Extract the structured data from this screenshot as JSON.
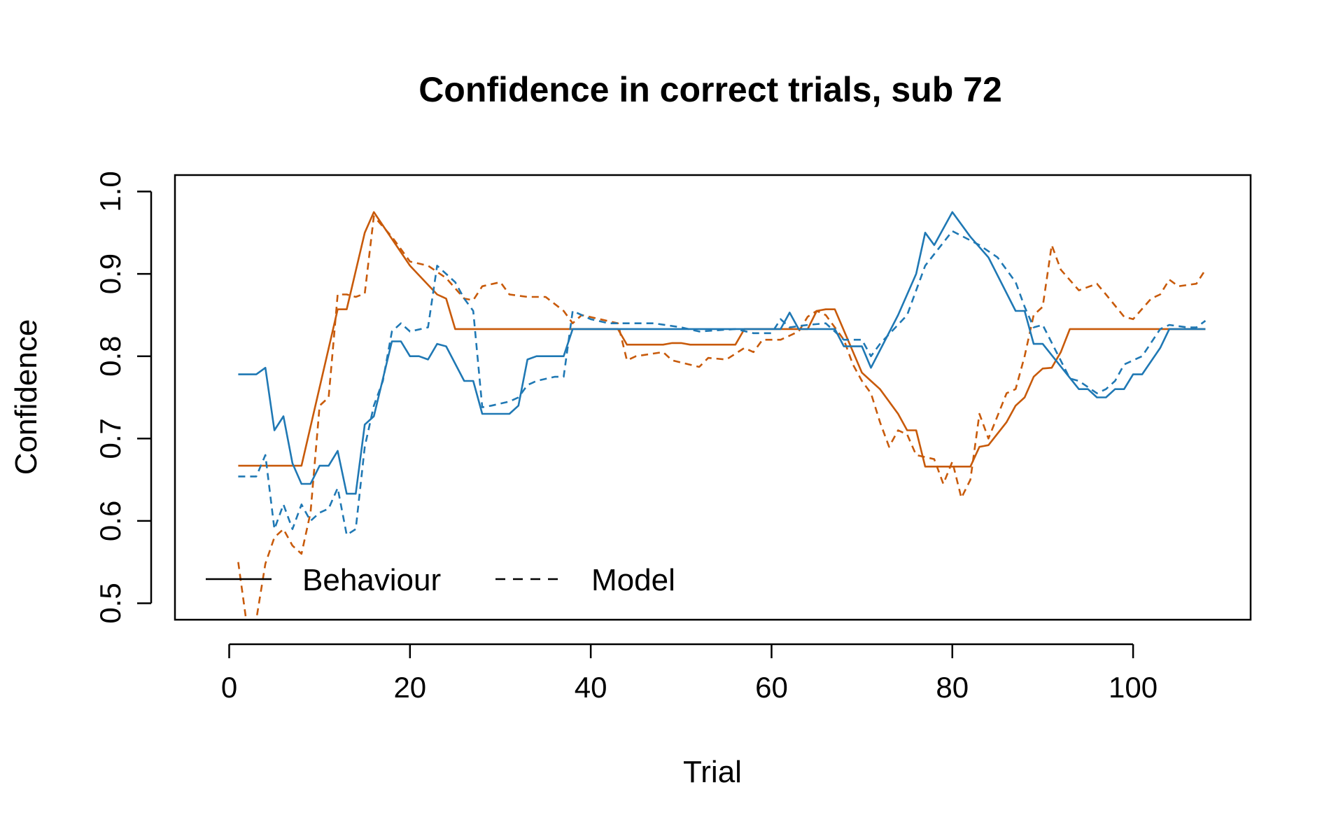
{
  "chart_data": {
    "type": "line",
    "title": "Confidence in correct trials, sub 72",
    "xlabel": "Trial",
    "ylabel": "Confidence",
    "xlim": [
      -6,
      113
    ],
    "ylim": [
      0.48,
      1.02
    ],
    "x_ticks": [
      0,
      20,
      40,
      60,
      80,
      100
    ],
    "y_ticks": [
      0.5,
      0.6,
      0.7,
      0.8,
      0.9,
      1.0
    ],
    "x_tick_labels": [
      "0",
      "20",
      "40",
      "60",
      "80",
      "100"
    ],
    "y_tick_labels": [
      "0.5",
      "0.6",
      "0.7",
      "0.8",
      "0.9",
      "1.0"
    ],
    "colors": {
      "orange": "#c85a0a",
      "blue": "#1f78b4"
    },
    "legend": {
      "position": "bottom-left",
      "entries": [
        {
          "label": "Behaviour",
          "line_style": "solid"
        },
        {
          "label": "Model",
          "line_style": "dashed"
        }
      ]
    },
    "series": [
      {
        "color": "orange",
        "line_style": "solid",
        "points": [
          [
            1,
            0.667
          ],
          [
            8,
            0.667
          ],
          [
            12,
            0.857
          ],
          [
            13,
            0.857
          ],
          [
            15,
            0.95
          ],
          [
            16,
            0.975
          ],
          [
            20,
            0.91
          ],
          [
            23,
            0.875
          ],
          [
            24,
            0.87
          ],
          [
            25,
            0.833
          ],
          [
            43,
            0.833
          ],
          [
            44,
            0.814
          ],
          [
            48,
            0.814
          ],
          [
            49,
            0.816
          ],
          [
            50,
            0.816
          ],
          [
            51,
            0.814
          ],
          [
            56,
            0.814
          ],
          [
            57,
            0.833
          ],
          [
            64,
            0.833
          ],
          [
            65,
            0.855
          ],
          [
            66,
            0.857
          ],
          [
            67,
            0.857
          ],
          [
            70,
            0.78
          ],
          [
            71,
            0.77
          ],
          [
            72,
            0.76
          ],
          [
            74,
            0.73
          ],
          [
            75,
            0.71
          ],
          [
            76,
            0.71
          ],
          [
            77,
            0.666
          ],
          [
            82,
            0.666
          ],
          [
            83,
            0.69
          ],
          [
            84,
            0.692
          ],
          [
            86,
            0.72
          ],
          [
            87,
            0.74
          ],
          [
            88,
            0.75
          ],
          [
            89,
            0.775
          ],
          [
            90,
            0.785
          ],
          [
            91,
            0.786
          ],
          [
            92,
            0.805
          ],
          [
            93,
            0.833
          ],
          [
            108,
            0.833
          ]
        ]
      },
      {
        "color": "orange",
        "line_style": "dashed",
        "points": [
          [
            1,
            0.55
          ],
          [
            2,
            0.47
          ],
          [
            3,
            0.48
          ],
          [
            4,
            0.548
          ],
          [
            5,
            0.58
          ],
          [
            6,
            0.59
          ],
          [
            7,
            0.57
          ],
          [
            8,
            0.56
          ],
          [
            9,
            0.61
          ],
          [
            10,
            0.74
          ],
          [
            11,
            0.75
          ],
          [
            12,
            0.875
          ],
          [
            13,
            0.875
          ],
          [
            14,
            0.872
          ],
          [
            15,
            0.876
          ],
          [
            16,
            0.97
          ],
          [
            18,
            0.945
          ],
          [
            20,
            0.915
          ],
          [
            22,
            0.91
          ],
          [
            24,
            0.895
          ],
          [
            26,
            0.87
          ],
          [
            27,
            0.868
          ],
          [
            28,
            0.885
          ],
          [
            30,
            0.89
          ],
          [
            31,
            0.875
          ],
          [
            33,
            0.872
          ],
          [
            35,
            0.872
          ],
          [
            37,
            0.855
          ],
          [
            38,
            0.84
          ],
          [
            39,
            0.85
          ],
          [
            41,
            0.845
          ],
          [
            43,
            0.84
          ],
          [
            44,
            0.795
          ],
          [
            45,
            0.8
          ],
          [
            48,
            0.805
          ],
          [
            49,
            0.795
          ],
          [
            52,
            0.787
          ],
          [
            53,
            0.798
          ],
          [
            55,
            0.796
          ],
          [
            57,
            0.81
          ],
          [
            58,
            0.805
          ],
          [
            59,
            0.82
          ],
          [
            61,
            0.82
          ],
          [
            63,
            0.83
          ],
          [
            64,
            0.848
          ],
          [
            65,
            0.855
          ],
          [
            66,
            0.85
          ],
          [
            68,
            0.82
          ],
          [
            69,
            0.79
          ],
          [
            70,
            0.77
          ],
          [
            71,
            0.755
          ],
          [
            72,
            0.72
          ],
          [
            73,
            0.69
          ],
          [
            74,
            0.71
          ],
          [
            75,
            0.705
          ],
          [
            76,
            0.68
          ],
          [
            78,
            0.675
          ],
          [
            79,
            0.645
          ],
          [
            80,
            0.672
          ],
          [
            81,
            0.628
          ],
          [
            82,
            0.65
          ],
          [
            83,
            0.73
          ],
          [
            84,
            0.7
          ],
          [
            86,
            0.755
          ],
          [
            87,
            0.76
          ],
          [
            88,
            0.8
          ],
          [
            89,
            0.85
          ],
          [
            90,
            0.86
          ],
          [
            91,
            0.935
          ],
          [
            92,
            0.905
          ],
          [
            94,
            0.88
          ],
          [
            96,
            0.888
          ],
          [
            97,
            0.875
          ],
          [
            99,
            0.848
          ],
          [
            100,
            0.845
          ],
          [
            102,
            0.87
          ],
          [
            103,
            0.875
          ],
          [
            104,
            0.893
          ],
          [
            105,
            0.885
          ],
          [
            107,
            0.888
          ],
          [
            108,
            0.905
          ]
        ]
      },
      {
        "color": "blue",
        "line_style": "solid",
        "points": [
          [
            1,
            0.778
          ],
          [
            3,
            0.778
          ],
          [
            4,
            0.786
          ],
          [
            5,
            0.71
          ],
          [
            6,
            0.727
          ],
          [
            7,
            0.67
          ],
          [
            8,
            0.645
          ],
          [
            9,
            0.645
          ],
          [
            10,
            0.667
          ],
          [
            11,
            0.667
          ],
          [
            12,
            0.685
          ],
          [
            13,
            0.633
          ],
          [
            14,
            0.633
          ],
          [
            15,
            0.717
          ],
          [
            16,
            0.727
          ],
          [
            18,
            0.818
          ],
          [
            19,
            0.818
          ],
          [
            20,
            0.8
          ],
          [
            21,
            0.8
          ],
          [
            22,
            0.796
          ],
          [
            23,
            0.815
          ],
          [
            24,
            0.812
          ],
          [
            26,
            0.77
          ],
          [
            27,
            0.77
          ],
          [
            28,
            0.73
          ],
          [
            31,
            0.73
          ],
          [
            32,
            0.74
          ],
          [
            33,
            0.796
          ],
          [
            34,
            0.8
          ],
          [
            37,
            0.8
          ],
          [
            38,
            0.833
          ],
          [
            61,
            0.833
          ],
          [
            62,
            0.853
          ],
          [
            63,
            0.833
          ],
          [
            67,
            0.833
          ],
          [
            68,
            0.812
          ],
          [
            70,
            0.812
          ],
          [
            71,
            0.786
          ],
          [
            74,
            0.85
          ],
          [
            76,
            0.9
          ],
          [
            77,
            0.95
          ],
          [
            78,
            0.935
          ],
          [
            80,
            0.975
          ],
          [
            82,
            0.945
          ],
          [
            84,
            0.92
          ],
          [
            87,
            0.855
          ],
          [
            88,
            0.855
          ],
          [
            89,
            0.815
          ],
          [
            90,
            0.815
          ],
          [
            94,
            0.76
          ],
          [
            95,
            0.76
          ],
          [
            96,
            0.75
          ],
          [
            97,
            0.75
          ],
          [
            98,
            0.76
          ],
          [
            99,
            0.76
          ],
          [
            100,
            0.778
          ],
          [
            101,
            0.778
          ],
          [
            103,
            0.81
          ],
          [
            104,
            0.833
          ],
          [
            108,
            0.833
          ]
        ]
      },
      {
        "color": "blue",
        "line_style": "dashed",
        "points": [
          [
            1,
            0.654
          ],
          [
            3,
            0.654
          ],
          [
            4,
            0.68
          ],
          [
            5,
            0.59
          ],
          [
            6,
            0.62
          ],
          [
            7,
            0.59
          ],
          [
            8,
            0.62
          ],
          [
            9,
            0.6
          ],
          [
            10,
            0.61
          ],
          [
            11,
            0.615
          ],
          [
            12,
            0.64
          ],
          [
            13,
            0.583
          ],
          [
            14,
            0.59
          ],
          [
            15,
            0.69
          ],
          [
            16,
            0.74
          ],
          [
            17,
            0.77
          ],
          [
            18,
            0.83
          ],
          [
            19,
            0.84
          ],
          [
            20,
            0.83
          ],
          [
            22,
            0.835
          ],
          [
            23,
            0.91
          ],
          [
            25,
            0.89
          ],
          [
            26,
            0.87
          ],
          [
            27,
            0.855
          ],
          [
            28,
            0.738
          ],
          [
            29,
            0.74
          ],
          [
            31,
            0.745
          ],
          [
            32,
            0.75
          ],
          [
            33,
            0.765
          ],
          [
            34,
            0.77
          ],
          [
            36,
            0.775
          ],
          [
            37,
            0.775
          ],
          [
            38,
            0.855
          ],
          [
            40,
            0.845
          ],
          [
            42,
            0.84
          ],
          [
            47,
            0.84
          ],
          [
            50,
            0.835
          ],
          [
            52,
            0.83
          ],
          [
            56,
            0.833
          ],
          [
            58,
            0.828
          ],
          [
            60,
            0.828
          ],
          [
            61,
            0.845
          ],
          [
            62,
            0.835
          ],
          [
            64,
            0.838
          ],
          [
            66,
            0.84
          ],
          [
            68,
            0.82
          ],
          [
            70,
            0.82
          ],
          [
            71,
            0.8
          ],
          [
            72,
            0.815
          ],
          [
            75,
            0.85
          ],
          [
            77,
            0.91
          ],
          [
            80,
            0.952
          ],
          [
            83,
            0.935
          ],
          [
            85,
            0.92
          ],
          [
            87,
            0.89
          ],
          [
            88,
            0.86
          ],
          [
            89,
            0.835
          ],
          [
            90,
            0.838
          ],
          [
            93,
            0.773
          ],
          [
            94,
            0.77
          ],
          [
            96,
            0.755
          ],
          [
            97,
            0.76
          ],
          [
            98,
            0.77
          ],
          [
            99,
            0.79
          ],
          [
            101,
            0.8
          ],
          [
            103,
            0.833
          ],
          [
            104,
            0.838
          ],
          [
            106,
            0.835
          ],
          [
            107,
            0.835
          ],
          [
            108,
            0.843
          ]
        ]
      }
    ]
  }
}
